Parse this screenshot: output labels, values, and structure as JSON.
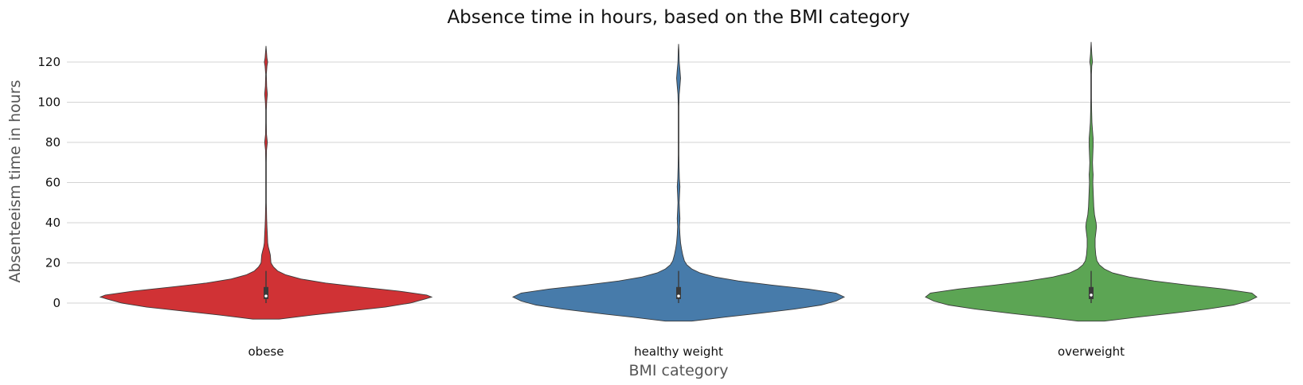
{
  "chart_data": {
    "type": "violin",
    "title": "Absence time in hours, based on the BMI category",
    "xlabel": "BMI category",
    "ylabel": "Absenteeism time in hours",
    "ylim": [
      -12,
      131
    ],
    "yticks": [
      0,
      20,
      40,
      60,
      80,
      100,
      120
    ],
    "grid": "horizontal",
    "categories": [
      "obese",
      "healthy weight",
      "overweight"
    ],
    "colors": [
      "#d03235",
      "#477baa",
      "#5ca554"
    ],
    "series": [
      {
        "category": "obese",
        "color": "#d03235",
        "range": [
          -8,
          128
        ],
        "quartiles": [
          2,
          3.5,
          8
        ],
        "whiskers": [
          0,
          16
        ],
        "density": [
          [
            -8,
            0.08
          ],
          [
            -6,
            0.28
          ],
          [
            -4,
            0.5
          ],
          [
            -2,
            0.72
          ],
          [
            0,
            0.87
          ],
          [
            2,
            0.96
          ],
          [
            3,
            1.0
          ],
          [
            4,
            0.97
          ],
          [
            6,
            0.8
          ],
          [
            8,
            0.57
          ],
          [
            10,
            0.36
          ],
          [
            12,
            0.21
          ],
          [
            14,
            0.12
          ],
          [
            16,
            0.07
          ],
          [
            18,
            0.045
          ],
          [
            20,
            0.03
          ],
          [
            22,
            0.028
          ],
          [
            24,
            0.026
          ],
          [
            26,
            0.02
          ],
          [
            28,
            0.014
          ],
          [
            30,
            0.01
          ],
          [
            34,
            0.008
          ],
          [
            38,
            0.006
          ],
          [
            42,
            0.004
          ],
          [
            50,
            0.002
          ],
          [
            60,
            0.002
          ],
          [
            70,
            0.002
          ],
          [
            76,
            0.003
          ],
          [
            80,
            0.008
          ],
          [
            84,
            0.003
          ],
          [
            90,
            0.002
          ],
          [
            96,
            0.002
          ],
          [
            100,
            0.004
          ],
          [
            104,
            0.008
          ],
          [
            108,
            0.004
          ],
          [
            114,
            0.002
          ],
          [
            118,
            0.006
          ],
          [
            120,
            0.01
          ],
          [
            122,
            0.006
          ],
          [
            126,
            0.002
          ],
          [
            128,
            0
          ]
        ]
      },
      {
        "category": "healthy weight",
        "color": "#477baa",
        "range": [
          -9,
          129
        ],
        "quartiles": [
          2,
          3.5,
          8
        ],
        "whiskers": [
          0,
          16
        ],
        "density": [
          [
            -9,
            0.08
          ],
          [
            -7,
            0.28
          ],
          [
            -5,
            0.5
          ],
          [
            -3,
            0.7
          ],
          [
            -1,
            0.86
          ],
          [
            1,
            0.95
          ],
          [
            3,
            1.0
          ],
          [
            5,
            0.95
          ],
          [
            7,
            0.78
          ],
          [
            9,
            0.56
          ],
          [
            11,
            0.36
          ],
          [
            13,
            0.22
          ],
          [
            15,
            0.13
          ],
          [
            17,
            0.08
          ],
          [
            19,
            0.05
          ],
          [
            21,
            0.035
          ],
          [
            24,
            0.025
          ],
          [
            27,
            0.018
          ],
          [
            30,
            0.012
          ],
          [
            34,
            0.008
          ],
          [
            38,
            0.006
          ],
          [
            42,
            0.008
          ],
          [
            46,
            0.006
          ],
          [
            50,
            0.004
          ],
          [
            54,
            0.006
          ],
          [
            58,
            0.008
          ],
          [
            62,
            0.005
          ],
          [
            68,
            0.003
          ],
          [
            74,
            0.002
          ],
          [
            82,
            0.002
          ],
          [
            90,
            0.002
          ],
          [
            98,
            0.002
          ],
          [
            104,
            0.004
          ],
          [
            108,
            0.008
          ],
          [
            112,
            0.012
          ],
          [
            116,
            0.008
          ],
          [
            120,
            0.004
          ],
          [
            126,
            0.002
          ],
          [
            129,
            0
          ]
        ]
      },
      {
        "category": "overweight",
        "color": "#5ca554",
        "range": [
          -9,
          130
        ],
        "quartiles": [
          2,
          4,
          8
        ],
        "whiskers": [
          0,
          16
        ],
        "density": [
          [
            -9,
            0.08
          ],
          [
            -7,
            0.28
          ],
          [
            -5,
            0.5
          ],
          [
            -3,
            0.7
          ],
          [
            -1,
            0.86
          ],
          [
            1,
            0.95
          ],
          [
            3,
            1.0
          ],
          [
            5,
            0.97
          ],
          [
            7,
            0.8
          ],
          [
            9,
            0.58
          ],
          [
            11,
            0.38
          ],
          [
            13,
            0.23
          ],
          [
            15,
            0.13
          ],
          [
            17,
            0.08
          ],
          [
            19,
            0.05
          ],
          [
            21,
            0.035
          ],
          [
            24,
            0.028
          ],
          [
            28,
            0.024
          ],
          [
            32,
            0.024
          ],
          [
            36,
            0.03
          ],
          [
            38,
            0.032
          ],
          [
            40,
            0.03
          ],
          [
            44,
            0.02
          ],
          [
            48,
            0.016
          ],
          [
            52,
            0.014
          ],
          [
            56,
            0.012
          ],
          [
            60,
            0.01
          ],
          [
            64,
            0.012
          ],
          [
            66,
            0.01
          ],
          [
            70,
            0.008
          ],
          [
            74,
            0.01
          ],
          [
            78,
            0.012
          ],
          [
            82,
            0.012
          ],
          [
            86,
            0.008
          ],
          [
            90,
            0.005
          ],
          [
            96,
            0.003
          ],
          [
            102,
            0.002
          ],
          [
            108,
            0.002
          ],
          [
            114,
            0.002
          ],
          [
            118,
            0.004
          ],
          [
            120,
            0.008
          ],
          [
            124,
            0.004
          ],
          [
            130,
            0
          ]
        ]
      }
    ]
  }
}
